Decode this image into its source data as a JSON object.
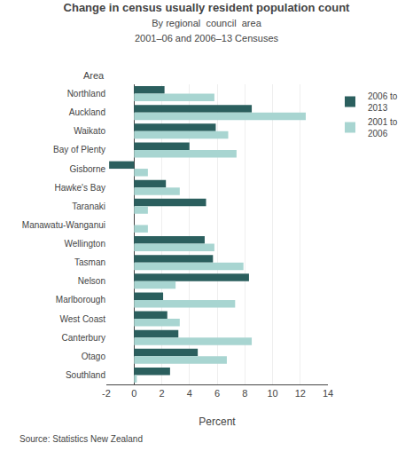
{
  "chart_data": {
    "type": "bar",
    "orientation": "horizontal",
    "title": "Change in census usually resident population count",
    "subtitle": [
      "By regional  council  area",
      "2001–06 and 2006–13 Censuses"
    ],
    "xlabel": "Percent",
    "ylabel": "Area",
    "annotations": [
      "Source: Statistics New Zealand"
    ],
    "categories": [
      "Northland",
      "Auckland",
      "Waikato",
      "Bay of Plenty",
      "Gisborne",
      "Hawke's Bay",
      "Taranaki",
      "Manawatu-Wanganui",
      "Wellington",
      "Tasman",
      "Nelson",
      "Marlborough",
      "West Coast",
      "Canterbury",
      "Otago",
      "Southland"
    ],
    "series": [
      {
        "name": "2006 to\n2013",
        "color": "#2b5f5e",
        "values": [
          2.2,
          8.5,
          5.9,
          4.0,
          -1.8,
          2.3,
          5.2,
          0.0,
          5.1,
          5.7,
          8.3,
          2.1,
          2.4,
          3.2,
          4.6,
          2.6
        ]
      },
      {
        "name": "2001 to\n2006",
        "color": "#a8d5d1",
        "values": [
          5.8,
          12.4,
          6.8,
          7.4,
          1.0,
          3.3,
          1.0,
          1.0,
          5.8,
          7.9,
          3.0,
          7.3,
          3.3,
          8.5,
          6.7,
          0.2
        ]
      }
    ],
    "xlim": [
      -2,
      14
    ],
    "xticks": [
      -2,
      0,
      2,
      4,
      6,
      8,
      10,
      12,
      14
    ],
    "grid": true,
    "legend": "upper right"
  }
}
